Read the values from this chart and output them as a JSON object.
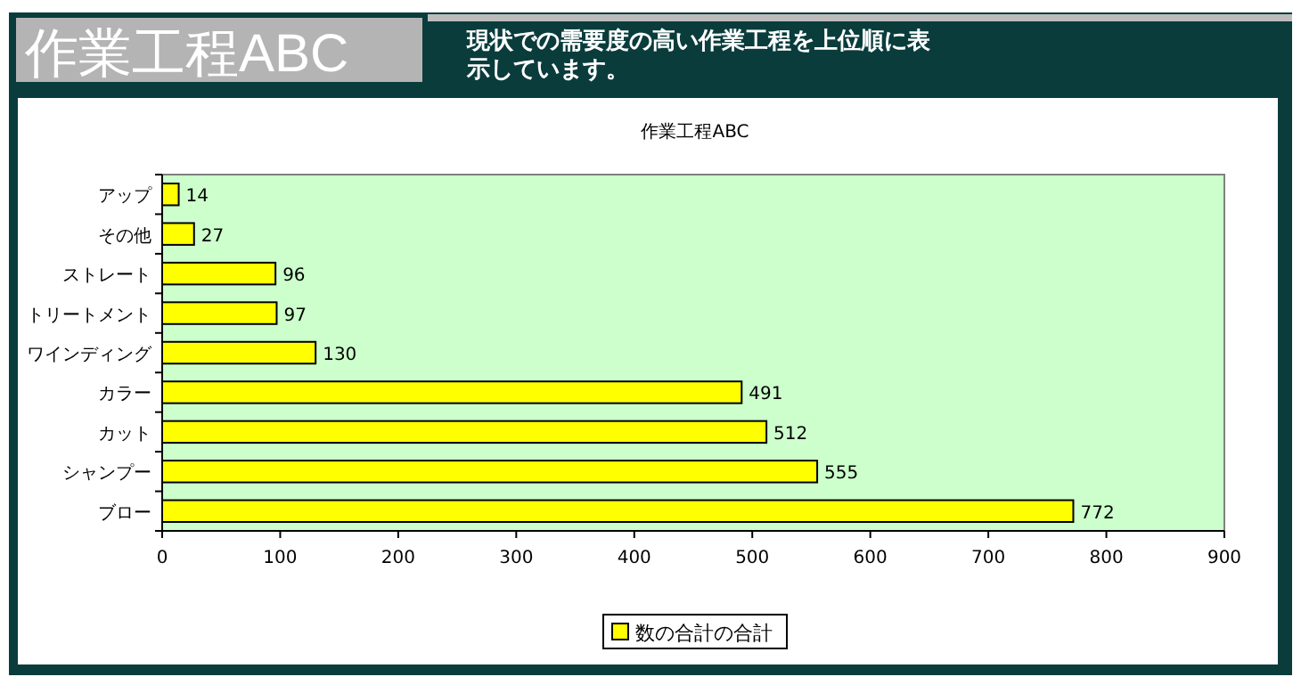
{
  "chart_data": {
    "type": "bar",
    "orientation": "horizontal",
    "title": "作業工程ABC",
    "subtitle": "現状での需要度の高い作業工程を上位順に表示しています。",
    "annotations": [
      "作業工程ABC"
    ],
    "categories": [
      "アップ",
      "その他",
      "ストレート",
      "トリートメント",
      "ワインディング",
      "カラー",
      "カット",
      "シャンプー",
      "ブロー"
    ],
    "series": [
      {
        "name": "数の合計の合計",
        "color": "#ffff00",
        "values": [
          14,
          27,
          96,
          97,
          130,
          491,
          512,
          555,
          772
        ]
      }
    ],
    "xlim": [
      0,
      900
    ],
    "xticks": [
      0,
      100,
      200,
      300,
      400,
      500,
      600,
      700,
      800,
      900
    ],
    "data_labels": true,
    "legend": "bottom"
  }
}
